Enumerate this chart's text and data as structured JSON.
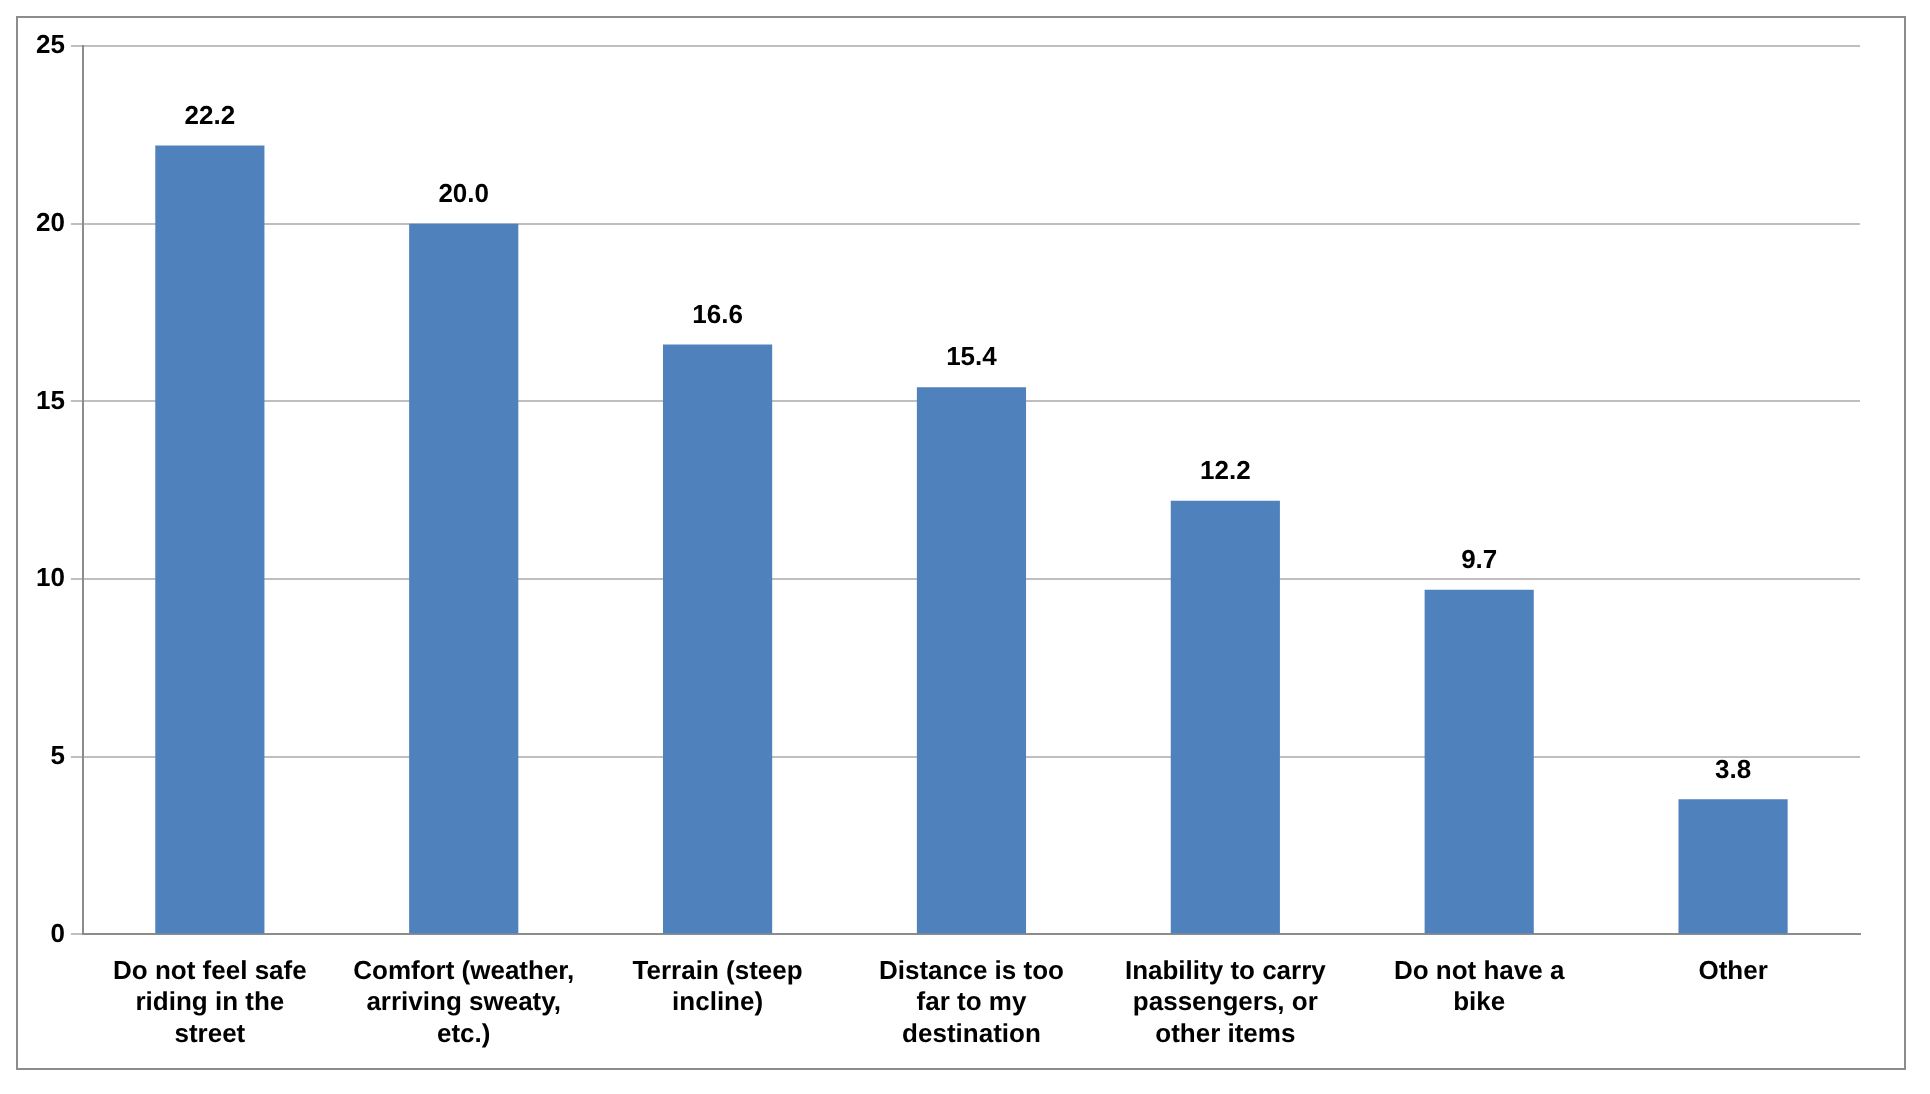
{
  "chart_data": {
    "type": "bar",
    "categories": [
      "Do not feel safe riding in the street",
      "Comfort (weather, arriving sweaty, etc.)",
      "Terrain (steep incline)",
      "Distance is too far to my destination",
      "Inability to carry passengers, or other items",
      "Do not have a bike",
      "Other"
    ],
    "values": [
      22.2,
      20.0,
      16.6,
      15.4,
      12.2,
      9.7,
      3.8
    ],
    "value_labels": [
      "22.2",
      "20.0",
      "16.6",
      "15.4",
      "12.2",
      "9.7",
      "3.8"
    ],
    "color": "#4f81bd",
    "ylim": [
      0,
      25
    ],
    "yticks": [
      0,
      5,
      10,
      15,
      20,
      25
    ],
    "grid": "y",
    "legend": false
  }
}
